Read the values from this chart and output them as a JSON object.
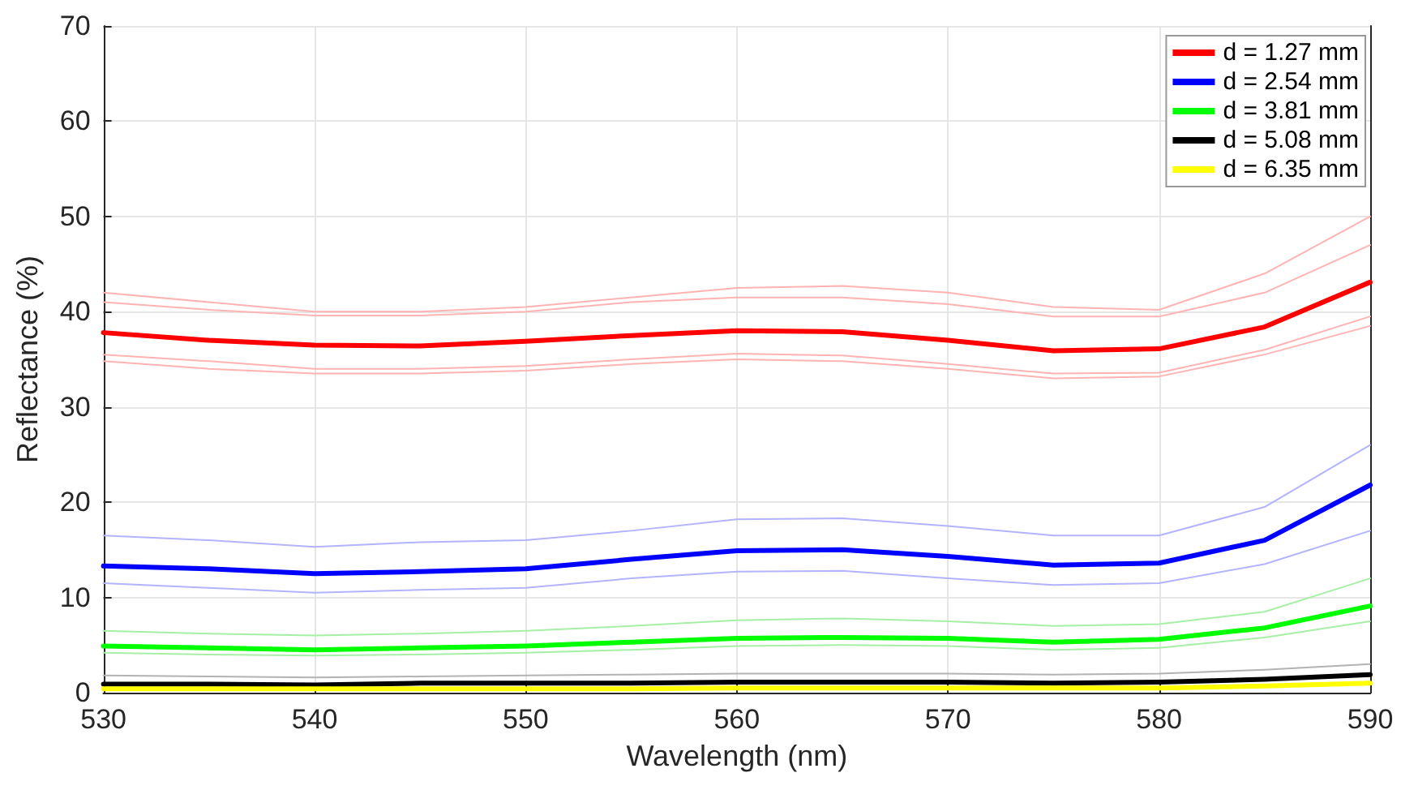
{
  "chart_data": {
    "type": "line",
    "xlabel": "Wavelength (nm)",
    "ylabel": "Reflectance (%)",
    "x": [
      530,
      535,
      540,
      545,
      550,
      555,
      560,
      565,
      570,
      575,
      580,
      585,
      590
    ],
    "xlim": [
      530,
      590
    ],
    "xticks": [
      530,
      540,
      550,
      560,
      570,
      580,
      590
    ],
    "ylim": [
      0,
      70
    ],
    "yticks": [
      0,
      10,
      20,
      30,
      40,
      50,
      60,
      70
    ],
    "grid": true,
    "legend": "top right",
    "marker": "none",
    "line_style": "solid",
    "series": [
      {
        "color": "#ffb3b3",
        "values": [
          42.0,
          41.0,
          40.0,
          40.0,
          40.5,
          41.5,
          42.5,
          42.7,
          42.0,
          40.5,
          40.2,
          44.0,
          50.0
        ]
      },
      {
        "color": "#ffb3b3",
        "values": [
          41.0,
          40.2,
          39.6,
          39.6,
          40.0,
          41.0,
          41.5,
          41.5,
          40.8,
          39.5,
          39.5,
          42.0,
          47.0
        ]
      },
      {
        "color": "#ffb3b3",
        "values": [
          35.5,
          34.8,
          34.0,
          34.0,
          34.3,
          35.0,
          35.6,
          35.4,
          34.5,
          33.5,
          33.6,
          36.0,
          39.5
        ]
      },
      {
        "color": "#ffb3b3",
        "values": [
          34.8,
          34.0,
          33.5,
          33.5,
          33.8,
          34.5,
          35.0,
          34.8,
          34.0,
          33.0,
          33.2,
          35.5,
          38.5
        ]
      },
      {
        "color": "#b3b3ff",
        "values": [
          16.5,
          16.0,
          15.3,
          15.8,
          16.0,
          17.0,
          18.2,
          18.3,
          17.5,
          16.5,
          16.5,
          19.5,
          26.0
        ]
      },
      {
        "color": "#b3b3ff",
        "values": [
          11.5,
          11.0,
          10.5,
          10.8,
          11.0,
          12.0,
          12.7,
          12.8,
          12.0,
          11.3,
          11.5,
          13.5,
          17.0
        ]
      },
      {
        "color": "#a6f0a6",
        "values": [
          6.5,
          6.2,
          6.0,
          6.2,
          6.5,
          7.0,
          7.6,
          7.8,
          7.5,
          7.0,
          7.2,
          8.5,
          12.0
        ]
      },
      {
        "color": "#a6f0a6",
        "values": [
          4.2,
          4.0,
          3.9,
          4.0,
          4.2,
          4.5,
          4.9,
          5.0,
          4.9,
          4.5,
          4.7,
          5.8,
          7.5
        ]
      },
      {
        "color": "#b3b3b3",
        "values": [
          1.8,
          1.7,
          1.6,
          1.7,
          1.8,
          1.9,
          2.0,
          2.0,
          2.0,
          1.9,
          2.0,
          2.4,
          3.0
        ]
      },
      {
        "name": "d = 1.27 mm",
        "color": "#ff0000",
        "values": [
          37.8,
          37.0,
          36.5,
          36.4,
          36.9,
          37.5,
          38.0,
          37.9,
          37.0,
          35.9,
          36.1,
          38.4,
          43.1
        ]
      },
      {
        "name": "d = 2.54 mm",
        "color": "#0000ff",
        "values": [
          13.3,
          13.0,
          12.5,
          12.7,
          13.0,
          14.0,
          14.9,
          15.0,
          14.3,
          13.4,
          13.6,
          16.0,
          21.8
        ]
      },
      {
        "name": "d = 3.81 mm",
        "color": "#00ff00",
        "values": [
          4.9,
          4.7,
          4.5,
          4.7,
          4.9,
          5.3,
          5.7,
          5.8,
          5.7,
          5.3,
          5.6,
          6.8,
          9.1
        ]
      },
      {
        "name": "d = 5.08 mm",
        "color": "#000000",
        "values": [
          0.9,
          0.9,
          0.8,
          1.0,
          1.0,
          1.0,
          1.1,
          1.1,
          1.1,
          1.0,
          1.1,
          1.4,
          1.9
        ]
      },
      {
        "name": "d = 6.35 mm",
        "color": "#ffff00",
        "values": [
          0.4,
          0.4,
          0.4,
          0.4,
          0.4,
          0.4,
          0.5,
          0.5,
          0.5,
          0.5,
          0.5,
          0.7,
          1.0
        ]
      }
    ]
  }
}
